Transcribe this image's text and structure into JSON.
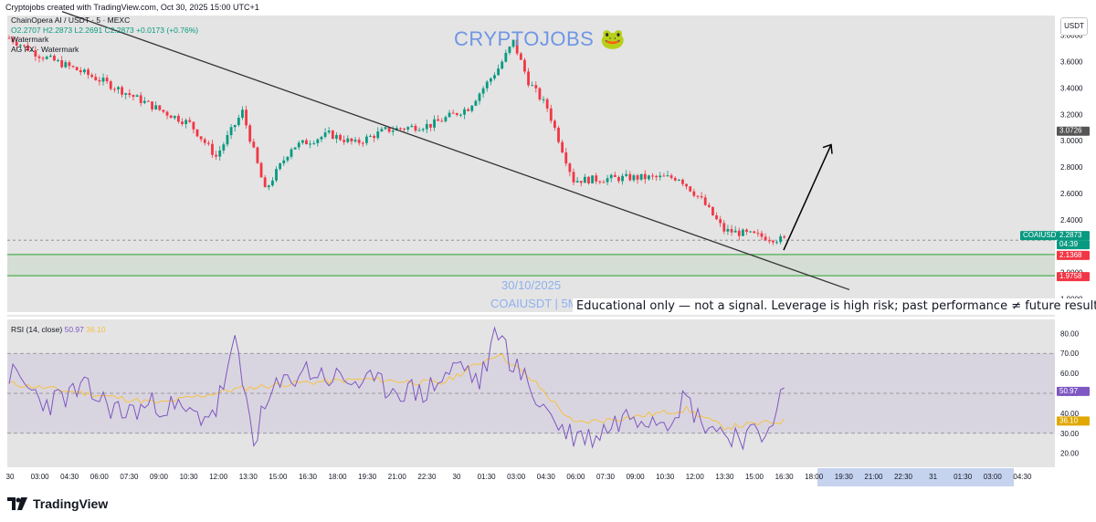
{
  "header": {
    "created_by": "Cryptojobs created with TradingView.com, Oct 30, 2025 15:00 UTC+1",
    "symbol": "ChainOpera AI / USDT · 5 · MEXC",
    "ohlc": "O2.2707 H2.2873 L2.2691 C2.2873 +0.0173 (+0.76%)",
    "indicator_1": "Watermark",
    "indicator_2": "AG FX · Watermark",
    "currency_button": "USDT"
  },
  "watermark": {
    "brand": "CRYPTOJOBS 🐸",
    "date": "30/10/2025",
    "ticker": "COAIUSDT | 5M"
  },
  "disclaimer": "Educational only — not a signal. Leverage is high risk; past performance ≠ future results.",
  "rsi_label": {
    "name": "RSI (14, close)",
    "value": "50.97",
    "ma": "36.10"
  },
  "footer": {
    "brand": "TradingView"
  },
  "colors": {
    "up": "#089981",
    "down": "#f23645",
    "rsi": "#7e57c2",
    "rsi_ma": "#f5c242",
    "zone": "#4caf50",
    "watermark": "#6f96e4"
  },
  "chart_data": [
    {
      "type": "candlestick",
      "title": "ChainOpera AI / USDT · 5 · MEXC",
      "y_ticks": [
        1.8,
        2.0,
        2.2,
        2.4,
        2.6,
        2.8,
        3.0,
        3.2,
        3.4,
        3.6,
        3.8
      ],
      "ylim": [
        1.7,
        3.95
      ],
      "x_tick_labels": [
        "30",
        "03:00",
        "04:30",
        "06:00",
        "07:30",
        "09:00",
        "10:30",
        "12:00",
        "13:30",
        "15:00",
        "16:30",
        "18:00",
        "19:30",
        "21:00",
        "22:30",
        "30",
        "01:30",
        "03:00",
        "04:30",
        "06:00",
        "07:30",
        "09:00",
        "10:30",
        "12:00",
        "13:30",
        "15:00",
        "16:30",
        "18:00",
        "19:30",
        "21:00",
        "22:30",
        "31",
        "01:30",
        "03:00",
        "04:30"
      ],
      "price_path": [
        [
          0,
          3.78
        ],
        [
          8,
          3.65
        ],
        [
          17,
          3.55
        ],
        [
          25,
          3.45
        ],
        [
          32,
          3.35
        ],
        [
          41,
          3.22
        ],
        [
          48,
          3.13
        ],
        [
          55,
          2.88
        ],
        [
          62,
          3.22
        ],
        [
          68,
          2.62
        ],
        [
          75,
          2.95
        ],
        [
          85,
          3.05
        ],
        [
          92,
          2.98
        ],
        [
          100,
          3.08
        ],
        [
          112,
          3.12
        ],
        [
          122,
          3.25
        ],
        [
          130,
          3.55
        ],
        [
          134,
          3.75
        ],
        [
          138,
          3.45
        ],
        [
          143,
          3.25
        ],
        [
          150,
          2.7
        ],
        [
          165,
          2.72
        ],
        [
          178,
          2.72
        ],
        [
          184,
          2.55
        ],
        [
          190,
          2.32
        ],
        [
          205,
          2.25
        ]
      ],
      "price_labels": [
        {
          "text": "COAIUSDT",
          "value": 2.2873,
          "color": "#089981"
        },
        {
          "text": "2.2873",
          "value": 2.2873,
          "color": "#089981"
        },
        {
          "text": "04:39",
          "value": 2.2873,
          "color": "#089981"
        },
        {
          "text": "3.0726",
          "value": 3.0726,
          "color": "#555555"
        },
        {
          "text": "2.1368",
          "value": 2.1368,
          "color": "#f23645"
        },
        {
          "text": "1.9758",
          "value": 1.9758,
          "color": "#f23645"
        }
      ],
      "zone": {
        "low": 1.9758,
        "high": 2.1368
      },
      "trendline": {
        "from": 3.98,
        "to": 1.87
      },
      "projection_arrow": {
        "from": 2.17,
        "to": 2.97
      },
      "current_value": 2.2873
    },
    {
      "type": "line",
      "title": "RSI (14, close)",
      "y_ticks": [
        20,
        30,
        40,
        50,
        60,
        70,
        80
      ],
      "ylim": [
        13,
        87
      ],
      "bands": [
        30,
        50,
        70
      ],
      "series": [
        {
          "name": "RSI (14, close)",
          "path": [
            [
              0,
              60
            ],
            [
              10,
              45
            ],
            [
              20,
              52
            ],
            [
              30,
              40
            ],
            [
              40,
              45
            ],
            [
              50,
              38
            ],
            [
              55,
              42
            ],
            [
              60,
              74
            ],
            [
              65,
              28
            ],
            [
              70,
              50
            ],
            [
              78,
              62
            ],
            [
              85,
              58
            ],
            [
              95,
              55
            ],
            [
              110,
              50
            ],
            [
              120,
              65
            ],
            [
              125,
              55
            ],
            [
              130,
              82
            ],
            [
              133,
              68
            ],
            [
              140,
              48
            ],
            [
              148,
              30
            ],
            [
              155,
              28
            ],
            [
              165,
              40
            ],
            [
              175,
              38
            ],
            [
              180,
              48
            ],
            [
              183,
              38
            ],
            [
              190,
              30
            ],
            [
              200,
              28
            ],
            [
              206,
              50.97
            ]
          ],
          "last": 50.97
        },
        {
          "name": "RSI-based MA",
          "path": [
            [
              0,
              55
            ],
            [
              20,
              50
            ],
            [
              40,
              45
            ],
            [
              60,
              52
            ],
            [
              75,
              55
            ],
            [
              95,
              57
            ],
            [
              115,
              55
            ],
            [
              130,
              70
            ],
            [
              140,
              55
            ],
            [
              150,
              35
            ],
            [
              165,
              38
            ],
            [
              180,
              42
            ],
            [
              190,
              33
            ],
            [
              206,
              36.1
            ]
          ],
          "last": 36.1
        }
      ]
    }
  ]
}
